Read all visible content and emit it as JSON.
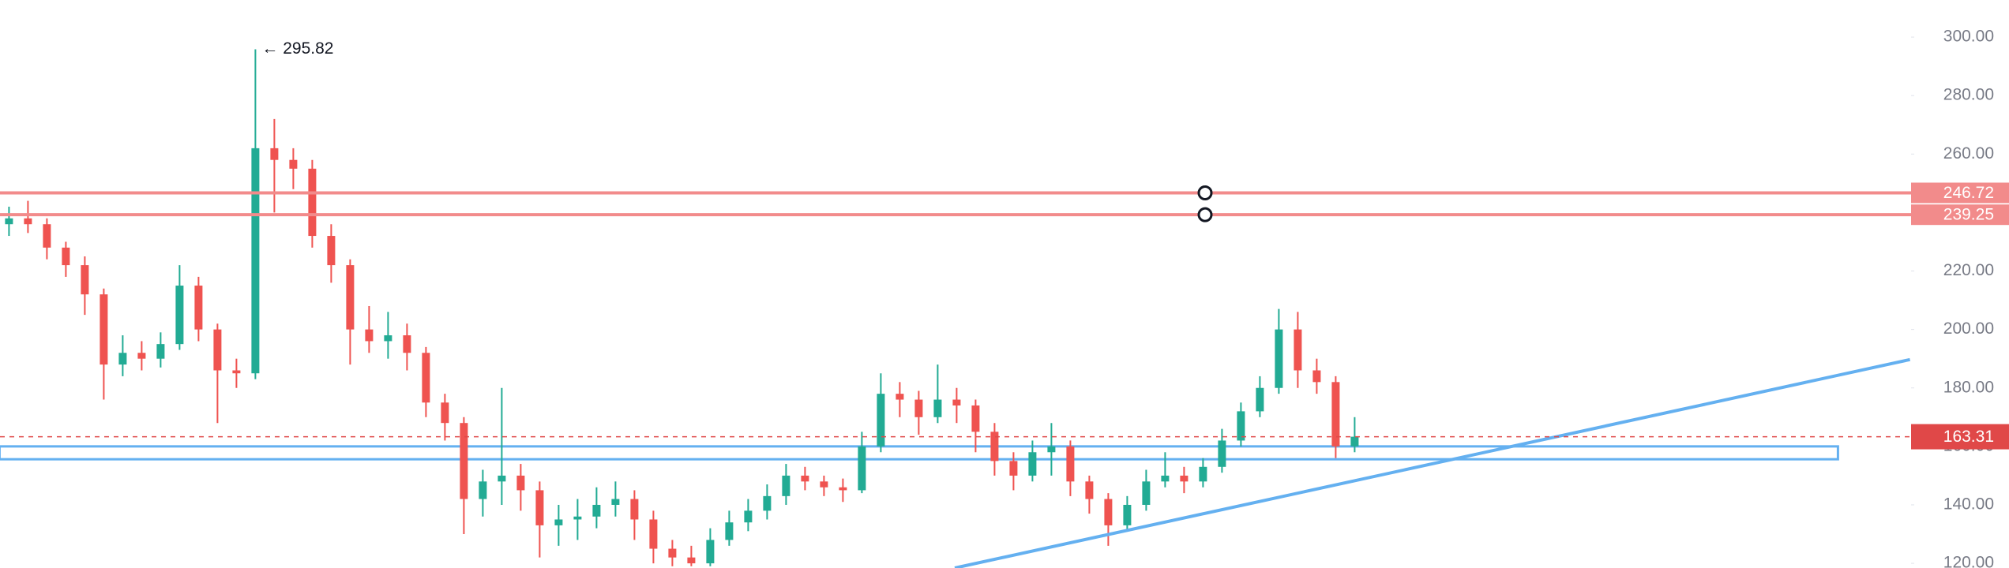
{
  "chart_data": {
    "type": "candlestick",
    "up_color": "#22ab94",
    "down_color": "#ef5350",
    "open": [
      236,
      238,
      236,
      228,
      222,
      212,
      188,
      192,
      190,
      195,
      215,
      200,
      186,
      185,
      262,
      258,
      255,
      232,
      222,
      200,
      196,
      198,
      192,
      175,
      168,
      142,
      148,
      150,
      145,
      133,
      135,
      136,
      140,
      142,
      135,
      125,
      122,
      120,
      128,
      134,
      138,
      143,
      150,
      148,
      146,
      145,
      160,
      178,
      176,
      170,
      176,
      174,
      165,
      155,
      150,
      158,
      160,
      148,
      142,
      133,
      140,
      148,
      150,
      148,
      153,
      162,
      172,
      180,
      200,
      186,
      182,
      160
    ],
    "high": [
      242,
      244,
      238,
      230,
      225,
      214,
      198,
      196,
      199,
      222,
      218,
      202,
      190,
      295.82,
      272,
      262,
      258,
      236,
      224,
      208,
      206,
      202,
      194,
      178,
      170,
      152,
      180,
      154,
      148,
      140,
      142,
      146,
      148,
      145,
      138,
      128,
      126,
      132,
      138,
      142,
      147,
      154,
      153,
      150,
      149,
      165,
      185,
      182,
      179,
      188,
      180,
      176,
      168,
      158,
      162,
      168,
      162,
      150,
      144,
      143,
      152,
      158,
      153,
      156,
      166,
      175,
      184,
      207,
      206,
      190,
      184,
      170
    ],
    "low": [
      232,
      233,
      224,
      218,
      205,
      176,
      184,
      186,
      187,
      193,
      196,
      168,
      180,
      183,
      240,
      248,
      228,
      216,
      188,
      192,
      190,
      186,
      170,
      162,
      130,
      136,
      140,
      138,
      122,
      126,
      128,
      132,
      136,
      128,
      120,
      119,
      119,
      119,
      126,
      131,
      135,
      140,
      145,
      143,
      141,
      144,
      158,
      170,
      164,
      168,
      168,
      158,
      150,
      145,
      148,
      150,
      143,
      137,
      126,
      131,
      138,
      146,
      144,
      146,
      151,
      160,
      170,
      178,
      180,
      178,
      156,
      158
    ],
    "close": [
      238,
      236,
      228,
      222,
      212,
      188,
      192,
      190,
      195,
      215,
      200,
      186,
      185,
      262,
      258,
      255,
      232,
      222,
      200,
      196,
      198,
      192,
      175,
      168,
      142,
      148,
      150,
      145,
      133,
      135,
      136,
      140,
      142,
      135,
      125,
      122,
      120,
      128,
      134,
      138,
      143,
      150,
      148,
      146,
      145,
      160,
      178,
      176,
      170,
      176,
      174,
      165,
      155,
      150,
      158,
      160,
      148,
      142,
      133,
      140,
      148,
      150,
      148,
      153,
      162,
      172,
      180,
      200,
      186,
      182,
      160,
      163.31
    ],
    "ylim": [
      118.4,
      312.7
    ],
    "yticks": [
      {
        "value": 120,
        "label": "120.00"
      },
      {
        "value": 140,
        "label": "140.00"
      },
      {
        "value": 160,
        "label": "160.00"
      },
      {
        "value": 180,
        "label": "180.00"
      },
      {
        "value": 200,
        "label": "200.00"
      },
      {
        "value": 220,
        "label": "220.00"
      },
      {
        "value": 240,
        "label": "240.00"
      },
      {
        "value": 260,
        "label": "260.00"
      },
      {
        "value": 280,
        "label": "280.00"
      },
      {
        "value": 300,
        "label": "300.00"
      }
    ],
    "annotation": "← 295.82",
    "levels": [
      {
        "value": 246.72,
        "color": "#f28b8b"
      },
      {
        "value": 239.25,
        "color": "#f28b8b"
      }
    ],
    "last_price": {
      "value": 163.31,
      "color": "#e04848"
    },
    "zone": {
      "x": [
        -0.5,
        96.5
      ],
      "y": [
        160,
        155.6
      ],
      "color": "#64b0f0"
    },
    "trendline": {
      "x": [
        49.9,
        100.3
      ],
      "y": [
        118.4,
        189.7
      ],
      "color": "#64b0f0"
    }
  }
}
